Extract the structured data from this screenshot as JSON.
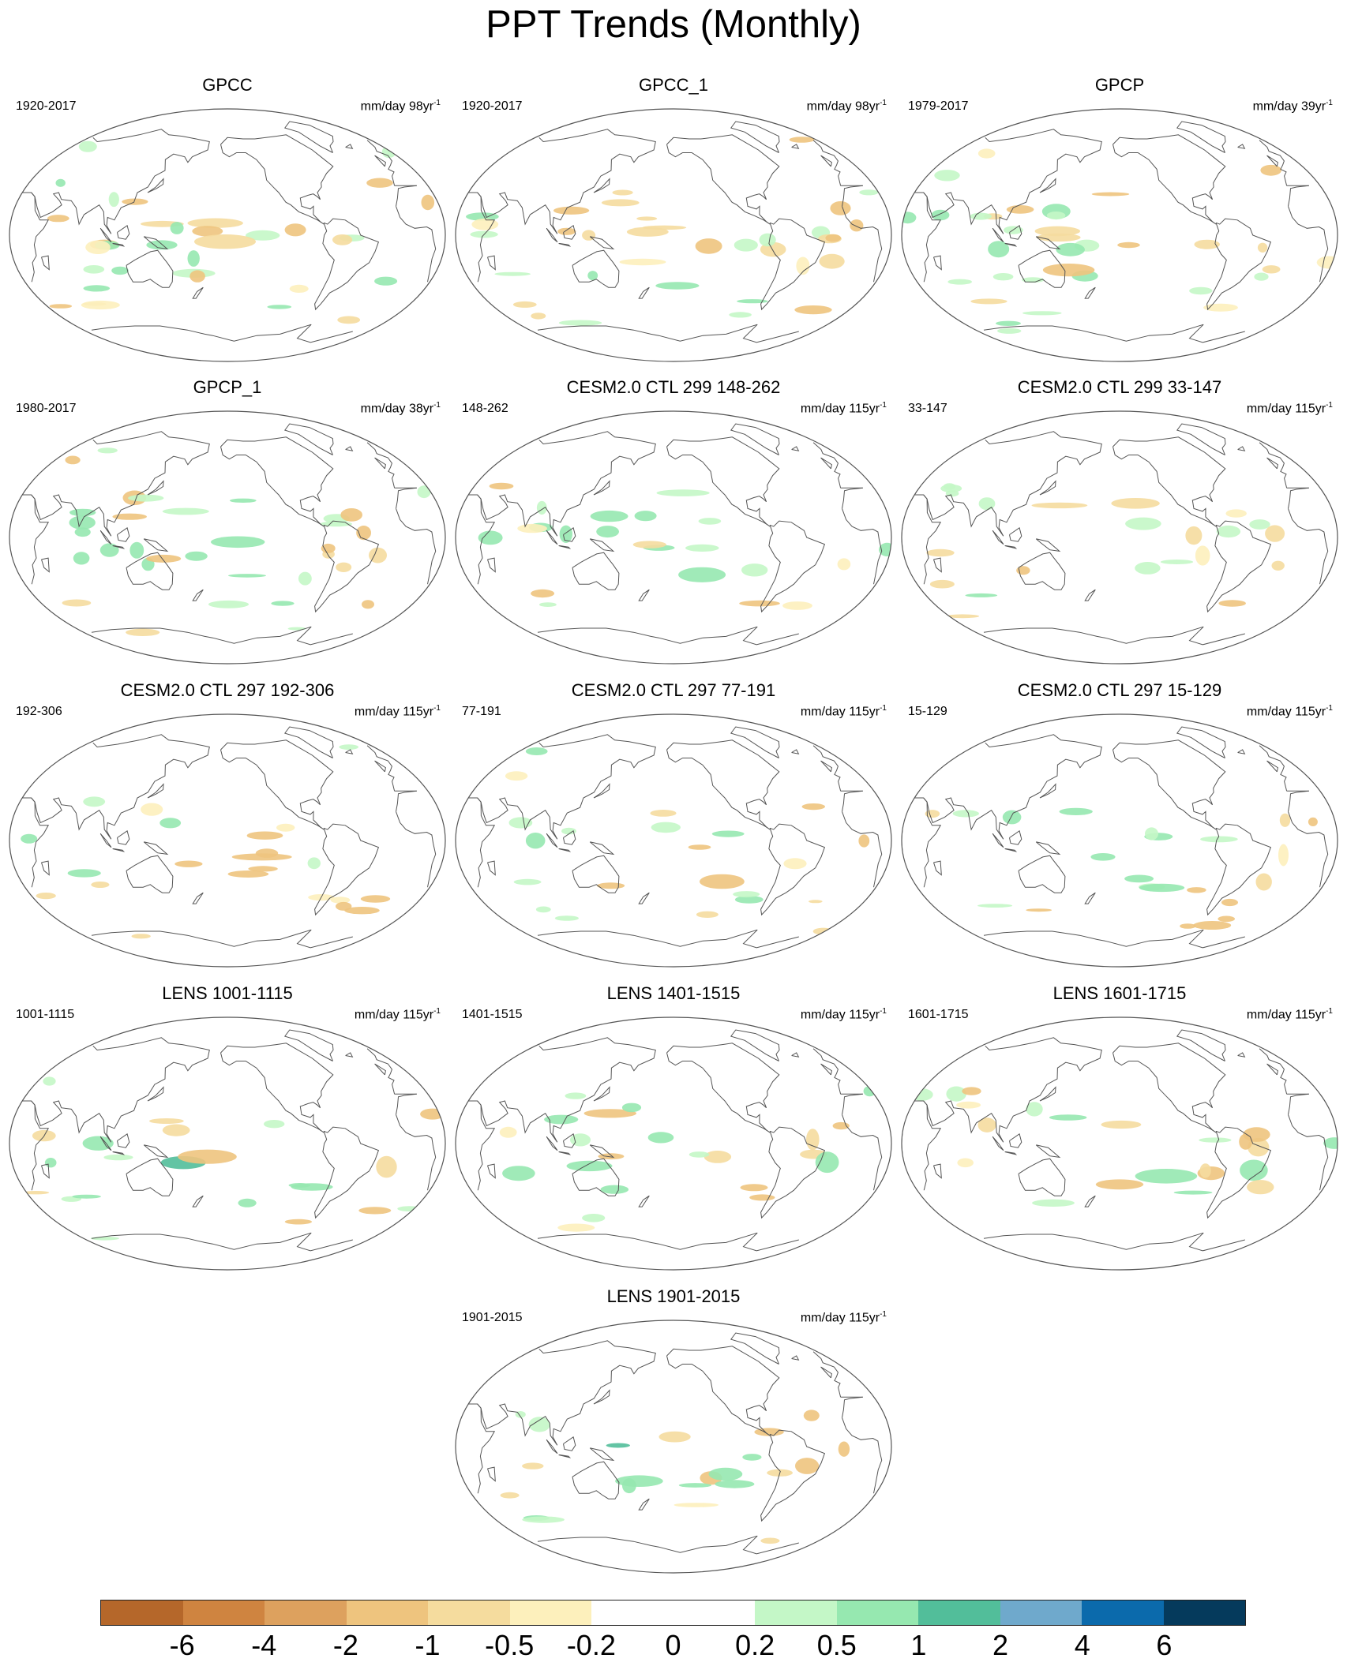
{
  "chart_data": {
    "type": "heatmap",
    "title": "PPT Trends (Monthly)",
    "colorbar": {
      "levels": [
        "-6",
        "-4",
        "-2",
        "-1",
        "-0.5",
        "-0.2",
        "0",
        "0.2",
        "0.5",
        "1",
        "2",
        "4",
        "6"
      ],
      "colors": [
        "#b5672a",
        "#cf8440",
        "#dda15e",
        "#eec47e",
        "#f5dc9e",
        "#fdf0bc",
        "#ffffff",
        "#ffffff",
        "#c4f7c7",
        "#96e8b0",
        "#52be9a",
        "#6fa9cc",
        "#0b6aac",
        "#053a5c"
      ]
    },
    "panels": [
      {
        "title": "GPCC",
        "period": "1920-2017",
        "units": "mm/day 98yr",
        "exp": "-1"
      },
      {
        "title": "GPCC_1",
        "period": "1920-2017",
        "units": "mm/day 98yr",
        "exp": "-1"
      },
      {
        "title": "GPCP",
        "period": "1979-2017",
        "units": "mm/day 39yr",
        "exp": "-1"
      },
      {
        "title": "GPCP_1",
        "period": "1980-2017",
        "units": "mm/day 38yr",
        "exp": "-1"
      },
      {
        "title": "CESM2.0 CTL 299 148-262",
        "period": "148-262",
        "units": "mm/day 115yr",
        "exp": "-1"
      },
      {
        "title": "CESM2.0 CTL 299 33-147",
        "period": "33-147",
        "units": "mm/day 115yr",
        "exp": "-1"
      },
      {
        "title": "CESM2.0 CTL 297 192-306",
        "period": "192-306",
        "units": "mm/day 115yr",
        "exp": "-1"
      },
      {
        "title": "CESM2.0 CTL 297 77-191",
        "period": "77-191",
        "units": "mm/day 115yr",
        "exp": "-1"
      },
      {
        "title": "CESM2.0 CTL 297 15-129",
        "period": "15-129",
        "units": "mm/day 115yr",
        "exp": "-1"
      },
      {
        "title": "LENS 1001-1115",
        "period": "1001-1115",
        "units": "mm/day 115yr",
        "exp": "-1"
      },
      {
        "title": "LENS 1401-1515",
        "period": "1401-1515",
        "units": "mm/day 115yr",
        "exp": "-1"
      },
      {
        "title": "LENS 1601-1715",
        "period": "1601-1715",
        "units": "mm/day 115yr",
        "exp": "-1"
      },
      {
        "title": "LENS 1901-2015",
        "period": "1901-2015",
        "units": "mm/day 115yr",
        "exp": "-1"
      }
    ]
  }
}
